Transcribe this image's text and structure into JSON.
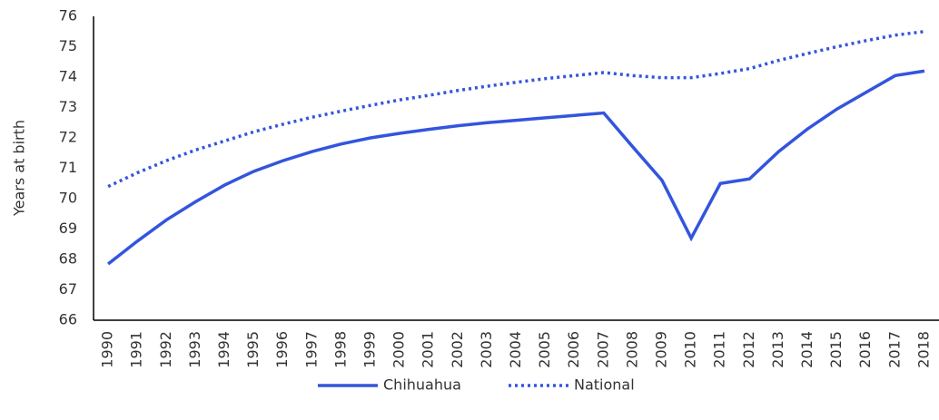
{
  "chart_data": {
    "type": "line",
    "y_label": "Years at birth",
    "categories": [
      "1990",
      "1991",
      "1992",
      "1993",
      "1994",
      "1995",
      "1996",
      "1997",
      "1998",
      "1999",
      "2000",
      "2001",
      "2002",
      "2003",
      "2004",
      "2005",
      "2006",
      "2007",
      "2008",
      "2009",
      "2010",
      "2011",
      "2012",
      "2013",
      "2014",
      "2015",
      "2016",
      "2017",
      "2018"
    ],
    "series": [
      {
        "name": "Chihuahua",
        "color": "#3355dd",
        "style": "solid",
        "values": [
          67.85,
          68.6,
          69.3,
          69.9,
          70.45,
          70.9,
          71.25,
          71.55,
          71.8,
          72.0,
          72.15,
          72.28,
          72.4,
          72.5,
          72.58,
          72.66,
          72.74,
          72.82,
          71.7,
          70.6,
          68.7,
          70.5,
          70.65,
          71.55,
          72.3,
          72.95,
          73.5,
          74.05,
          74.2
        ]
      },
      {
        "name": "National",
        "color": "#3355dd",
        "style": "dotted",
        "values": [
          70.4,
          70.85,
          71.25,
          71.6,
          71.9,
          72.2,
          72.45,
          72.68,
          72.88,
          73.07,
          73.25,
          73.4,
          73.56,
          73.7,
          73.83,
          73.95,
          74.05,
          74.15,
          74.05,
          73.98,
          73.98,
          74.12,
          74.28,
          74.55,
          74.78,
          75.0,
          75.2,
          75.38,
          75.5
        ]
      }
    ],
    "ylim": [
      66,
      76
    ],
    "yticks": [
      66,
      67,
      68,
      69,
      70,
      71,
      72,
      73,
      74,
      75,
      76
    ],
    "grid": false
  }
}
